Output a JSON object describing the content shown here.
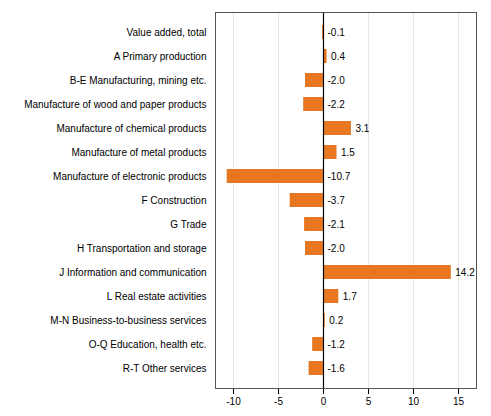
{
  "chart_data": {
    "type": "bar",
    "orientation": "horizontal",
    "categories": [
      "R-T Other services",
      "O-Q Education, health etc.",
      "M-N Business-to-business services",
      "L Real estate activities",
      "J Information and communication",
      "H Transportation and storage",
      "G Trade",
      "F Construction",
      "Manufacture of electronic products",
      "Manufacture of metal products",
      "Manufacture of chemical products",
      "Manufacture of wood and paper products",
      "B-E Manufacturing, mining etc.",
      "A Primary production",
      "Value added, total"
    ],
    "values": [
      -1.6,
      -1.2,
      0.2,
      1.7,
      14.2,
      -2.0,
      -2.1,
      -3.7,
      -10.7,
      1.5,
      3.1,
      -2.2,
      -2.0,
      0.4,
      -0.1
    ],
    "value_labels": [
      "-1.6",
      "-1.2",
      "0.2",
      "1.7",
      "14.2",
      "-2.0",
      "-2.1",
      "-3.7",
      "-10.7",
      "1.5",
      "3.1",
      "-2.2",
      "-2.0",
      "0.4",
      "-0.1"
    ],
    "color": "#E87722",
    "xlim": [
      -12,
      17
    ],
    "xticks": [
      -10,
      -5,
      0,
      5,
      10,
      15
    ],
    "grid": true,
    "data_labels": true
  }
}
